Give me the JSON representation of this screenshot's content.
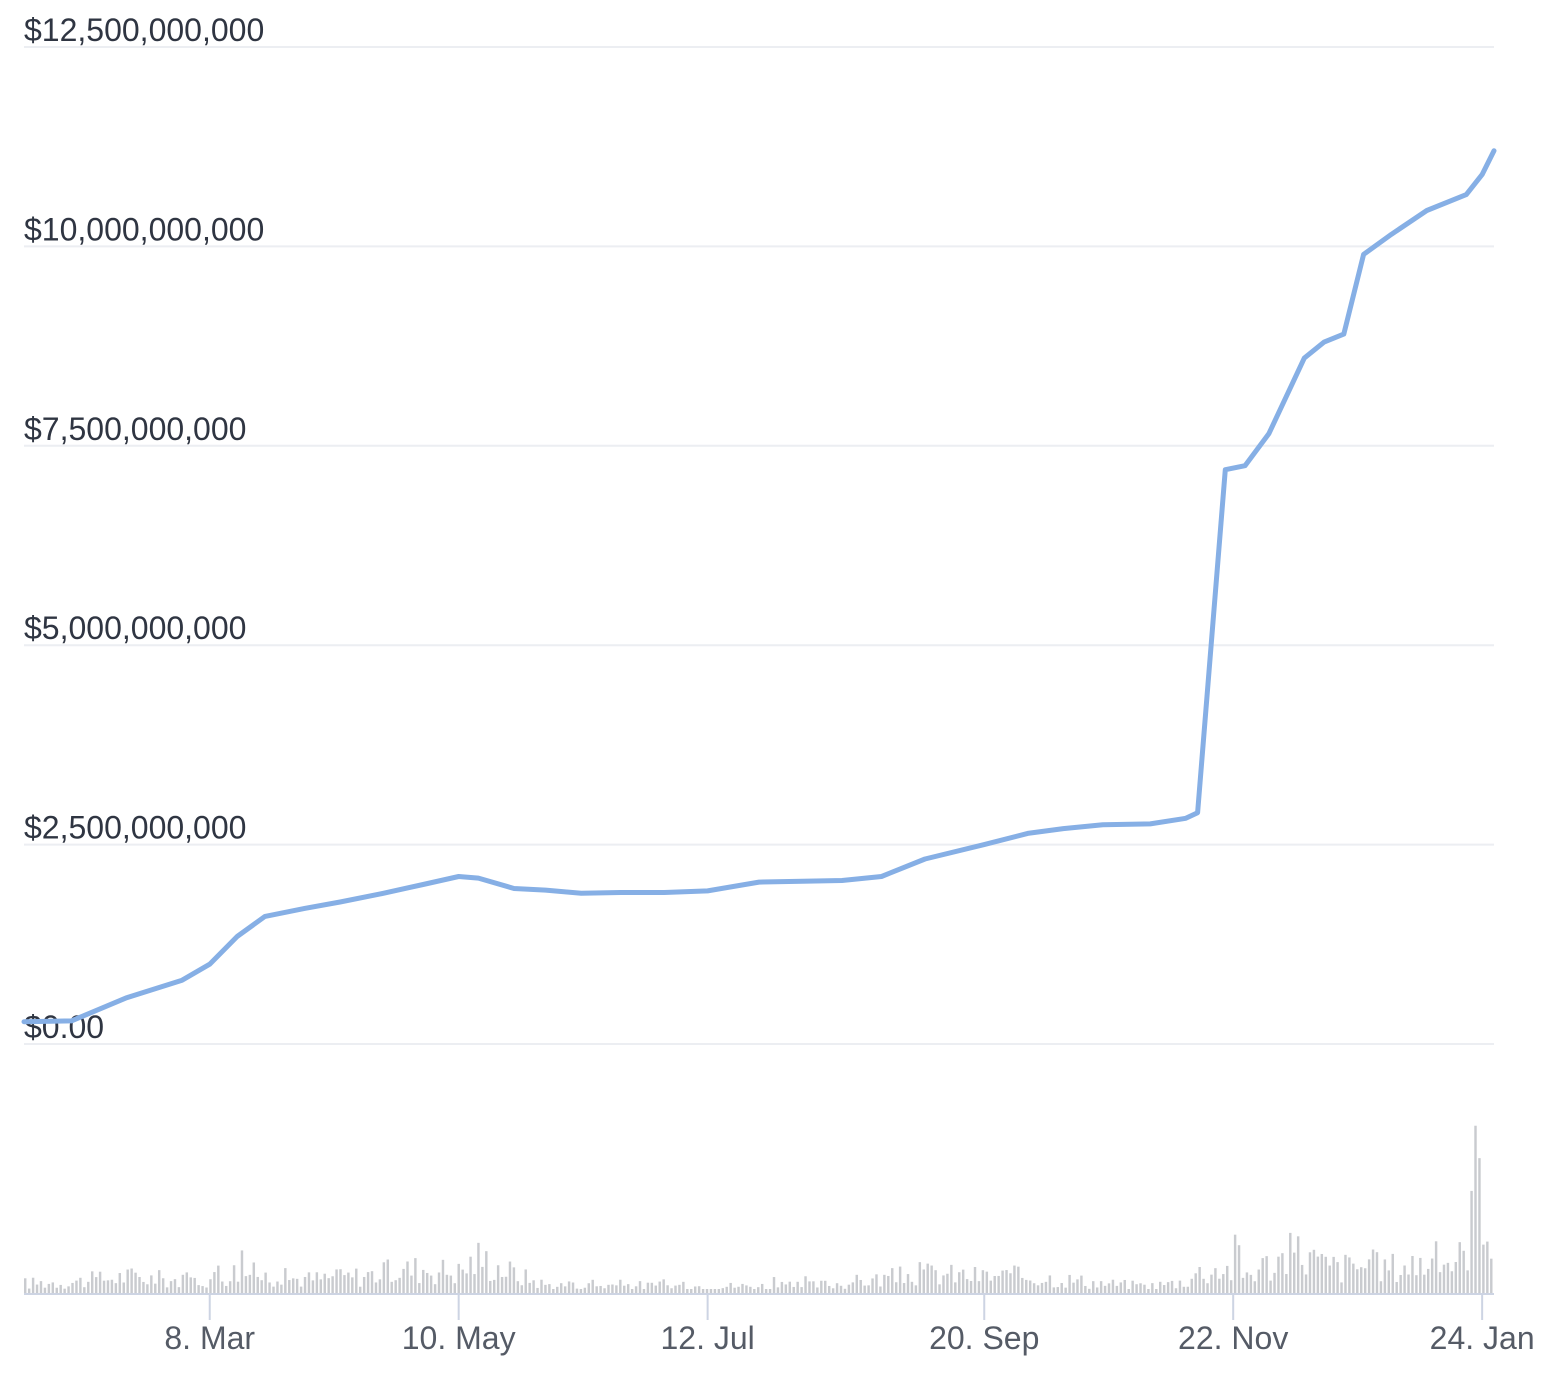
{
  "chart_data": {
    "type": "line",
    "title": "",
    "xlabel": "",
    "ylabel": "",
    "colors": {
      "line": "#86afe5",
      "volume": "#c9cbcf",
      "grid": "#eceef2",
      "axis": "#cdd4e3"
    },
    "y_ticks": [
      "$0.00",
      "$2,500,000,000",
      "$5,000,000,000",
      "$7,500,000,000",
      "$10,000,000,000",
      "$12,500,000,000"
    ],
    "ylim": [
      0,
      12500000000
    ],
    "x_ticks": [
      "8. Mar",
      "10. May",
      "12. Jul",
      "20. Sep",
      "22. Nov",
      "24. Jan"
    ],
    "grid": true,
    "legend": "none",
    "series": [
      {
        "x": [
          "Jan 20",
          "Feb 1",
          "Feb 15",
          "Mar 1",
          "Mar 8",
          "Mar 15",
          "Mar 22",
          "Apr 1",
          "Apr 10",
          "Apr 20",
          "May 1",
          "May 10",
          "May 15",
          "May 24",
          "Jun 1",
          "Jun 10",
          "Jun 20",
          "Jul 1",
          "Jul 12",
          "Jul 25",
          "Aug 5",
          "Aug 15",
          "Aug 25",
          "Sep 5",
          "Sep 20",
          "Oct 1",
          "Oct 10",
          "Oct 20",
          "Nov 1",
          "Nov 10",
          "Nov 13",
          "Nov 20",
          "Nov 25",
          "Dec 1",
          "Dec 10",
          "Dec 15",
          "Dec 20",
          "Dec 25",
          "Jan 1",
          "Jan 10",
          "Jan 20",
          "Jan 24",
          "Jan 27"
        ],
        "y": [
          280000000,
          290000000,
          580000000,
          800000000,
          1000000000,
          1350000000,
          1600000000,
          1700000000,
          1780000000,
          1880000000,
          2000000000,
          2100000000,
          2080000000,
          1950000000,
          1930000000,
          1890000000,
          1900000000,
          1900000000,
          1920000000,
          2030000000,
          2040000000,
          2050000000,
          2100000000,
          2320000000,
          2500000000,
          2640000000,
          2700000000,
          2750000000,
          2760000000,
          2830000000,
          2900000000,
          7200000000,
          7250000000,
          7650000000,
          8600000000,
          8800000000,
          8900000000,
          9900000000,
          10150000000,
          10450000000,
          10650000000,
          10900000000,
          11200000000
        ]
      }
    ],
    "volume": {
      "x": [
        "Jan 20",
        "Feb 1",
        "Feb 15",
        "Mar 1",
        "Mar 8",
        "Mar 15",
        "Mar 22",
        "Apr 1",
        "Apr 10",
        "Apr 20",
        "May 1",
        "May 10",
        "May 15",
        "May 24",
        "Jun 1",
        "Jun 10",
        "Jun 20",
        "Jul 1",
        "Jul 12",
        "Jul 25",
        "Aug 5",
        "Aug 15",
        "Aug 25",
        "Sep 5",
        "Sep 20",
        "Oct 1",
        "Oct 10",
        "Oct 20",
        "Nov 1",
        "Nov 10",
        "Nov 13",
        "Nov 20",
        "Nov 25",
        "Dec 1",
        "Dec 10",
        "Dec 15",
        "Dec 20",
        "Dec 25",
        "Jan 1",
        "Jan 10",
        "Jan 20",
        "Jan 24",
        "Jan 27"
      ],
      "values": [
        0.07,
        0.08,
        0.12,
        0.09,
        0.1,
        0.16,
        0.12,
        0.1,
        0.11,
        0.14,
        0.18,
        0.15,
        0.25,
        0.14,
        0.06,
        0.05,
        0.06,
        0.05,
        0.05,
        0.05,
        0.05,
        0.07,
        0.1,
        0.14,
        0.12,
        0.12,
        0.1,
        0.07,
        0.05,
        0.08,
        0.14,
        0.18,
        0.13,
        0.2,
        0.3,
        0.2,
        0.18,
        0.2,
        0.18,
        0.22,
        0.25,
        1.0,
        0.45
      ]
    }
  }
}
